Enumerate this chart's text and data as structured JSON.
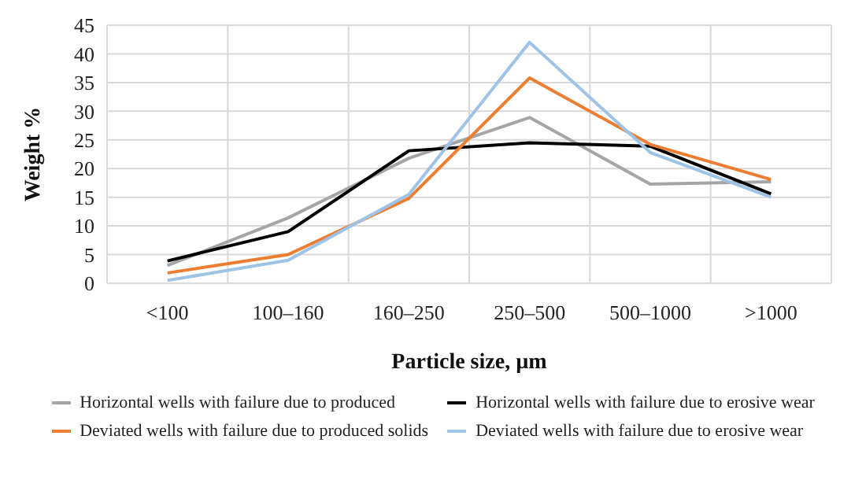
{
  "chart_data": {
    "type": "line",
    "xlabel": "Particle size, µm",
    "ylabel": "Weight %",
    "categories": [
      "<100",
      "100–160",
      "160–250",
      "250–500",
      "500–1000",
      ">1000"
    ],
    "series": [
      {
        "name": "Horizontal wells with failure due to produced",
        "color": "#a5a5a5",
        "values": [
          3.1,
          11.4,
          21.8,
          28.9,
          17.3,
          17.7
        ]
      },
      {
        "name": "Horizontal wells with failure due to erosive wear",
        "color": "#000000",
        "values": [
          3.9,
          9,
          23.1,
          24.5,
          23.9,
          15.6
        ]
      },
      {
        "name": "Deviated wells with failure due to produced solids",
        "color": "#ed7d31",
        "values": [
          1.8,
          5,
          14.8,
          35.8,
          24.2,
          18.1
        ]
      },
      {
        "name": "Deviated wells with failure due to erosive wear",
        "color": "#9dc3e6",
        "values": [
          0.5,
          4,
          15.5,
          42,
          22.8,
          15
        ]
      }
    ],
    "ylim": [
      0,
      45
    ],
    "yticks": [
      0,
      5,
      10,
      15,
      20,
      25,
      30,
      35,
      40,
      45
    ],
    "grid": true,
    "legend": "bottom",
    "marker": "none",
    "line_style": "solid"
  }
}
